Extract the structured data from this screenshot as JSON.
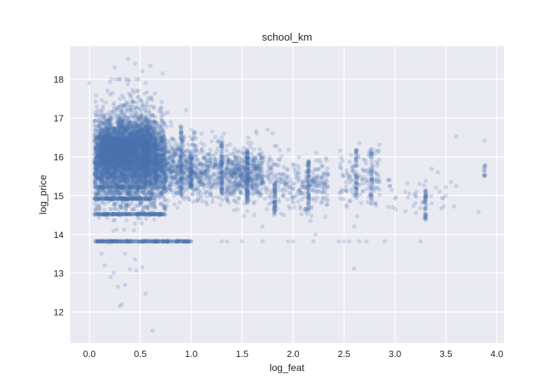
{
  "chart_data": {
    "type": "scatter",
    "title": "school_km",
    "xlabel": "log_feat",
    "ylabel": "log_price",
    "xlim": [
      -0.19,
      4.07
    ],
    "ylim": [
      11.2,
      18.85
    ],
    "xticks": [
      0.0,
      0.5,
      1.0,
      1.5,
      2.0,
      2.5,
      3.0,
      3.5,
      4.0
    ],
    "xtick_labels": [
      "0.0",
      "0.5",
      "1.0",
      "1.5",
      "2.0",
      "2.5",
      "3.0",
      "3.5",
      "4.0"
    ],
    "yticks": [
      12,
      13,
      14,
      15,
      16,
      17,
      18
    ],
    "ytick_labels": [
      "12",
      "13",
      "14",
      "15",
      "16",
      "17",
      "18"
    ],
    "grid": true,
    "background": "#eaeaf2",
    "marker_color": "#4c72b0",
    "marker_alpha": 0.2,
    "clusters": [
      {
        "x": [
          0.05,
          0.75
        ],
        "y_mean": 15.9,
        "y_sd": 0.55,
        "count": 3400
      },
      {
        "x": [
          0.1,
          0.6
        ],
        "y_mean": 16.2,
        "y_sd": 0.35,
        "count": 1500
      },
      {
        "x": [
          0.2,
          0.65
        ],
        "y_mean": 16.6,
        "y_sd": 0.6,
        "count": 350
      },
      {
        "x": [
          0.75,
          1.05
        ],
        "y_mean": 15.7,
        "y_sd": 0.4,
        "count": 400
      },
      {
        "x": [
          1.05,
          1.35
        ],
        "y_mean": 15.6,
        "y_sd": 0.35,
        "count": 250
      },
      {
        "x": [
          1.35,
          1.7
        ],
        "y_mean": 15.5,
        "y_sd": 0.35,
        "count": 450
      },
      {
        "x": [
          1.7,
          2.0
        ],
        "y_mean": 15.4,
        "y_sd": 0.35,
        "count": 120
      },
      {
        "x": [
          2.0,
          2.35
        ],
        "y_mean": 15.3,
        "y_sd": 0.35,
        "count": 160
      },
      {
        "x": [
          2.45,
          2.85
        ],
        "y_mean": 15.4,
        "y_sd": 0.35,
        "count": 130
      },
      {
        "x": [
          2.9,
          3.5
        ],
        "y_mean": 15.1,
        "y_sd": 0.3,
        "count": 35
      }
    ],
    "columns": [
      {
        "x": 0.55,
        "y": [
          15.2,
          16.8
        ],
        "count": 120
      },
      {
        "x": 0.65,
        "y": [
          15.3,
          16.5
        ],
        "count": 80
      },
      {
        "x": 0.9,
        "y": [
          15.0,
          16.8
        ],
        "count": 70
      },
      {
        "x": 1.0,
        "y": [
          15.2,
          16.1
        ],
        "count": 50
      },
      {
        "x": 1.3,
        "y": [
          15.0,
          16.4
        ],
        "count": 70
      },
      {
        "x": 1.55,
        "y": [
          14.8,
          16.2
        ],
        "count": 90
      },
      {
        "x": 1.82,
        "y": [
          14.5,
          15.3
        ],
        "count": 50
      },
      {
        "x": 2.15,
        "y": [
          14.6,
          15.9
        ],
        "count": 60
      },
      {
        "x": 2.62,
        "y": [
          15.0,
          16.2
        ],
        "count": 40
      },
      {
        "x": 2.77,
        "y": [
          14.7,
          16.2
        ],
        "count": 40
      },
      {
        "x": 3.3,
        "y": [
          14.35,
          15.15
        ],
        "count": 40
      },
      {
        "x": 3.88,
        "y": [
          15.5,
          15.8
        ],
        "count": 12
      }
    ],
    "bands": [
      {
        "y": 13.82,
        "x": [
          0.05,
          1.0
        ],
        "count": 260
      },
      {
        "y": 14.52,
        "x": [
          0.05,
          0.75
        ],
        "count": 200
      },
      {
        "y": 14.92,
        "x": [
          0.05,
          0.6
        ],
        "count": 150
      },
      {
        "y": 15.22,
        "x": [
          0.05,
          0.55
        ],
        "count": 80
      }
    ],
    "points": [
      [
        0.38,
        18.52
      ],
      [
        0.45,
        18.4
      ],
      [
        0.6,
        18.35
      ],
      [
        0.52,
        18.2
      ],
      [
        0.25,
        18.3
      ],
      [
        0.3,
        18.0
      ],
      [
        0.55,
        17.9
      ],
      [
        0.72,
        18.15
      ],
      [
        0.0,
        17.9
      ],
      [
        0.18,
        17.7
      ],
      [
        0.62,
        11.52
      ],
      [
        0.55,
        12.47
      ],
      [
        0.32,
        12.2
      ],
      [
        0.3,
        12.15
      ],
      [
        0.35,
        12.7
      ],
      [
        0.28,
        12.65
      ],
      [
        0.21,
        12.9
      ],
      [
        0.15,
        13.2
      ],
      [
        0.24,
        13.0
      ],
      [
        0.4,
        13.1
      ],
      [
        0.46,
        13.07
      ],
      [
        0.35,
        13.5
      ],
      [
        0.45,
        13.35
      ],
      [
        0.52,
        13.15
      ],
      [
        0.12,
        13.5
      ],
      [
        0.7,
        16.4
      ],
      [
        0.8,
        16.9
      ],
      [
        0.95,
        17.2
      ],
      [
        1.0,
        16.7
      ],
      [
        1.1,
        16.6
      ],
      [
        1.2,
        16.4
      ],
      [
        1.3,
        16.5
      ],
      [
        1.42,
        15.0
      ],
      [
        1.6,
        16.0
      ],
      [
        1.75,
        16.7
      ],
      [
        1.8,
        16.6
      ],
      [
        1.7,
        14.2
      ],
      [
        1.62,
        14.5
      ],
      [
        1.55,
        14.6
      ],
      [
        1.3,
        13.82
      ],
      [
        1.35,
        13.82
      ],
      [
        1.5,
        13.82
      ],
      [
        1.7,
        13.82
      ],
      [
        1.95,
        13.82
      ],
      [
        2.0,
        13.82
      ],
      [
        2.2,
        13.82
      ],
      [
        2.45,
        13.82
      ],
      [
        2.5,
        13.82
      ],
      [
        2.55,
        13.82
      ],
      [
        2.65,
        13.82
      ],
      [
        2.72,
        13.82
      ],
      [
        2.9,
        13.82
      ],
      [
        3.25,
        13.82
      ],
      [
        2.22,
        14.0
      ],
      [
        2.17,
        14.35
      ],
      [
        2.6,
        13.12
      ],
      [
        2.6,
        14.2
      ],
      [
        2.75,
        16.1
      ],
      [
        2.65,
        16.35
      ],
      [
        2.95,
        15.25
      ],
      [
        2.95,
        15.4
      ],
      [
        3.0,
        14.92
      ],
      [
        3.42,
        15.6
      ],
      [
        3.5,
        15.0
      ],
      [
        3.55,
        15.35
      ],
      [
        3.6,
        15.25
      ],
      [
        3.6,
        16.52
      ],
      [
        3.58,
        14.72
      ],
      [
        3.82,
        14.58
      ],
      [
        3.48,
        14.72
      ],
      [
        3.88,
        16.42
      ],
      [
        3.1,
        15.1
      ],
      [
        3.2,
        15.0
      ]
    ]
  }
}
